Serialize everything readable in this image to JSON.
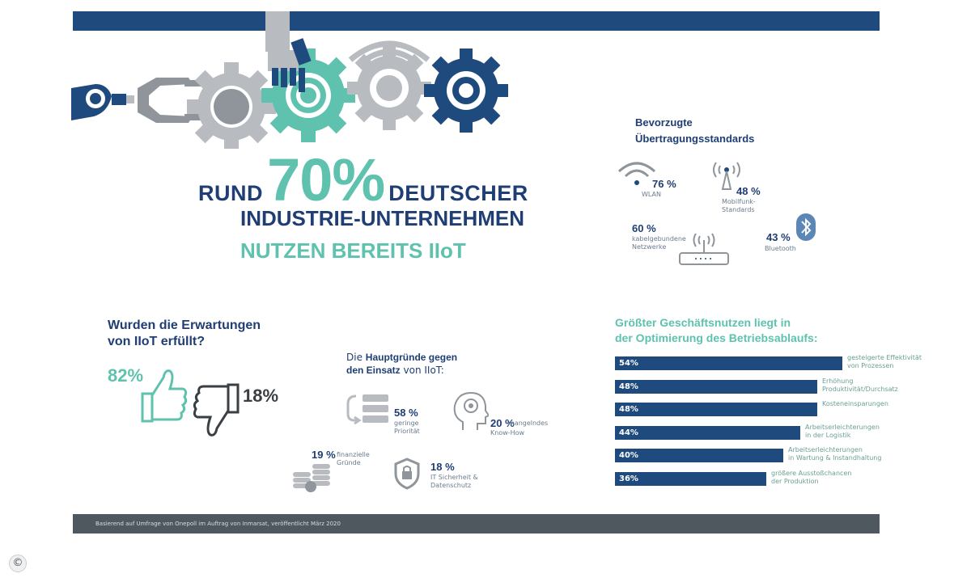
{
  "headline": {
    "prefix": "RUND",
    "percent": "70%",
    "suffix": "DEUTSCHER",
    "line2": "INDUSTRIE-UNTERNEHMEN",
    "line3": "NUTZEN BEREITS IIoT"
  },
  "standards": {
    "title_line1": "Bevorzugte",
    "title_line2": "Übertragungsstandards",
    "items": [
      {
        "value": "76 %",
        "label": "WLAN",
        "icon": "wifi-icon"
      },
      {
        "value": "48 %",
        "label_line1": "Mobilfunk-",
        "label_line2": "Standards",
        "icon": "antenna-icon"
      },
      {
        "value": "60 %",
        "label_line1": "kabelgebundene",
        "label_line2": "Netzwerke",
        "icon": "router-icon"
      },
      {
        "value": "43 %",
        "label": "Bluetooth",
        "icon": "bluetooth-icon"
      }
    ]
  },
  "expectations": {
    "title_line1": "Wurden die Erwartungen",
    "title_line2": "von IIoT erfüllt?",
    "yes_value": "82%",
    "no_value": "18%"
  },
  "reasons": {
    "title_prefix": "Die",
    "title_bold1": "Hauptgründe gegen",
    "title_bold2": "den Einsatz",
    "title_suffix": "von IIoT:",
    "items": [
      {
        "value": "58 %",
        "label_line1": "geringe",
        "label_line2": "Priorität",
        "icon": "priority-icon"
      },
      {
        "value": "20 %",
        "label_line1": "mangelndes",
        "label_line2": "Know-How",
        "icon": "head-gear-icon"
      },
      {
        "value": "19 %",
        "label_line1": "finanzielle",
        "label_line2": "Gründe",
        "icon": "coins-icon"
      },
      {
        "value": "18 %",
        "label_line1": "IT Sicherheit &",
        "label_line2": "Datenschutz",
        "icon": "lock-icon"
      }
    ]
  },
  "benefits": {
    "title_line1": "Größter Geschäftsnutzen liegt in",
    "title_line2": "der Optimierung des Betriebsablaufs:",
    "items": [
      {
        "value": "54%",
        "fraction": 0.54,
        "label_line1": "gesteigerte Effektivität",
        "label_line2": "von Prozessen"
      },
      {
        "value": "48%",
        "fraction": 0.48,
        "label_line1": "Erhöhung",
        "label_line2": "Produktivität/Durchsatz"
      },
      {
        "value": "48%",
        "fraction": 0.48,
        "label_line1": "Kosteneinsparungen",
        "label_line2": ""
      },
      {
        "value": "44%",
        "fraction": 0.44,
        "label_line1": "Arbeitserleichterungen",
        "label_line2": "in der Logistik"
      },
      {
        "value": "40%",
        "fraction": 0.4,
        "label_line1": "Arbeitserleichterungen",
        "label_line2": "in Wartung & Instandhaltung"
      },
      {
        "value": "36%",
        "fraction": 0.36,
        "label_line1": "größere Ausstoßchancen",
        "label_line2": "der Produktion"
      }
    ]
  },
  "footer": {
    "source": "Basierend auf Umfrage von Onepoll im Auftrag von Inmarsat, veröffentlicht März 2020"
  },
  "colors": {
    "navy": "#1f3e73",
    "teal": "#5ec2ae",
    "gray": "#b8bcc0"
  },
  "copyright_icon": "copyright-icon"
}
